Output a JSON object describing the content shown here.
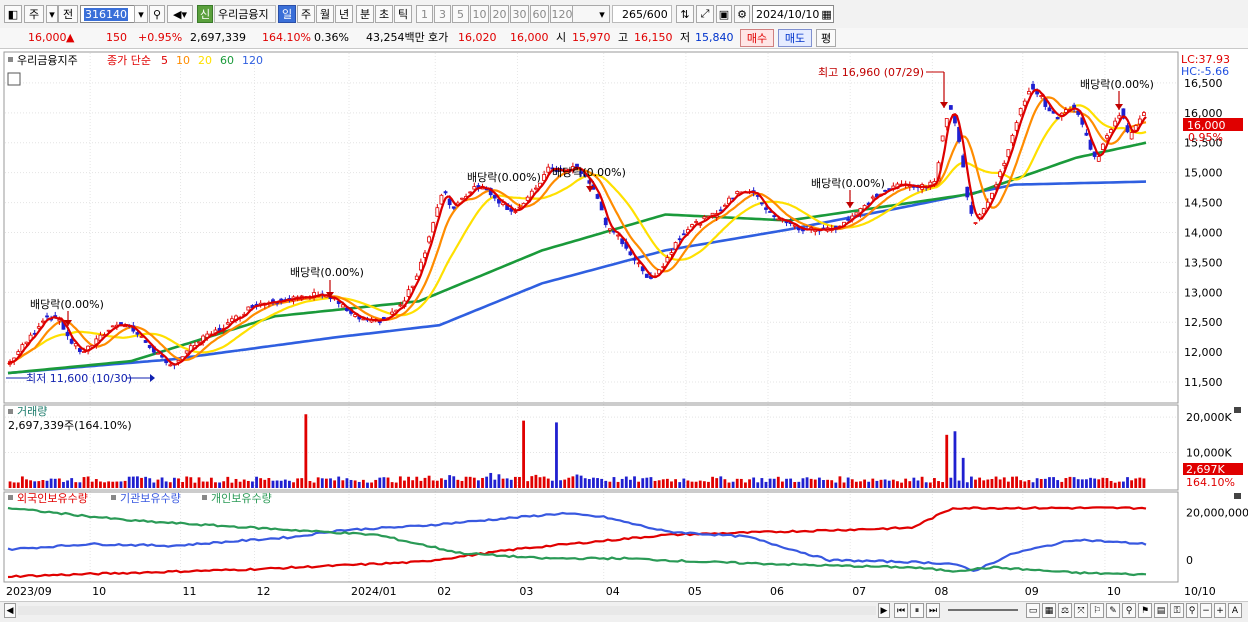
{
  "toolbar": {
    "period_type": "주",
    "prev_label": "전",
    "code": "316140",
    "name": "우리금융지",
    "badge": "신",
    "periods": [
      "일",
      "주",
      "월",
      "년",
      "분",
      "초",
      "틱"
    ],
    "active_period": "일",
    "nums": [
      "1",
      "3",
      "5",
      "10",
      "20",
      "30",
      "60",
      "120"
    ],
    "count": "265",
    "count_total": "/600",
    "date": "2024/10/10"
  },
  "quote": {
    "price": "16,000",
    "arrow": "▲",
    "change": "150",
    "change_pct": "+0.95%",
    "volume": "2,697,339",
    "vol_ratio": "164.10%",
    "turnover": "0.36%",
    "amount": "43,254백만",
    "hoga_label": "호가",
    "hoga1": "16,020",
    "hoga2": "16,000",
    "open_label": "시",
    "open": "15,970",
    "high_label": "고",
    "high": "16,150",
    "low_label": "저",
    "low": "15,840",
    "buy_btn": "매수",
    "sell_btn": "매도",
    "eval_btn": "평"
  },
  "price_panel": {
    "name": "우리금융지주",
    "ma_label": "종가 단순",
    "ma_periods": [
      "5",
      "10",
      "20",
      "60",
      "120"
    ],
    "lc": "LC:37.93",
    "hc": "HC:-5.66",
    "annotations": {
      "high": "최고 16,960 (07/29)",
      "low": "최저 11,600 (10/30)",
      "div1": "배당락(0.00%)",
      "div2": "배당락(0.00%)",
      "div3": "배당락(0.00%)",
      "div4": "배당락(0.00%)",
      "div5": "배당락(0.00%)",
      "div6": "배당락(0.00%)"
    },
    "last_price_tag": "16,000",
    "last_pct_tag": "0.95%"
  },
  "volume_panel": {
    "title": "거래량",
    "value_label": "2,697,339주(164.10%)",
    "tag": "2,697K",
    "tag_pct": "164.10%"
  },
  "holding_panel": {
    "legend": [
      "외국인보유수량",
      "기관보유수량",
      "개인보유수량"
    ]
  },
  "chart_data": [
    {
      "type": "candlestick",
      "ylim": [
        11200,
        16950
      ],
      "yticks": [
        11500,
        12000,
        12500,
        13000,
        13500,
        14000,
        14500,
        15000,
        15500,
        16000,
        16500
      ],
      "ytick_labels": [
        "11,500",
        "12,000",
        "12,500",
        "13,000",
        "13,500",
        "14,000",
        "14,500",
        "15,000",
        "15,500",
        "16,000",
        "16,500"
      ],
      "xlabels": [
        "2023/09",
        "10",
        "11",
        "12",
        "2024/01",
        "02",
        "03",
        "04",
        "05",
        "06",
        "07",
        "08",
        "09",
        "10",
        "10/10"
      ],
      "close_path": [
        [
          0,
          11800
        ],
        [
          6,
          12050
        ],
        [
          12,
          12300
        ],
        [
          18,
          12600
        ],
        [
          25,
          12550
        ],
        [
          30,
          12200
        ],
        [
          36,
          12000
        ],
        [
          42,
          12150
        ],
        [
          48,
          12350
        ],
        [
          54,
          12500
        ],
        [
          60,
          12400
        ],
        [
          66,
          12200
        ],
        [
          72,
          12000
        ],
        [
          78,
          11750
        ],
        [
          84,
          11900
        ],
        [
          90,
          12100
        ],
        [
          96,
          12250
        ],
        [
          104,
          12400
        ],
        [
          112,
          12600
        ],
        [
          120,
          12800
        ],
        [
          128,
          12850
        ],
        [
          136,
          12900
        ],
        [
          144,
          12900
        ],
        [
          152,
          13000
        ],
        [
          160,
          12850
        ],
        [
          168,
          12600
        ],
        [
          176,
          12500
        ],
        [
          184,
          12550
        ],
        [
          192,
          12800
        ],
        [
          198,
          13200
        ],
        [
          204,
          13800
        ],
        [
          208,
          14300
        ],
        [
          212,
          14700
        ],
        [
          216,
          14400
        ],
        [
          222,
          14600
        ],
        [
          228,
          14800
        ],
        [
          234,
          14700
        ],
        [
          240,
          14500
        ],
        [
          246,
          14350
        ],
        [
          252,
          14500
        ],
        [
          258,
          14800
        ],
        [
          264,
          15100
        ],
        [
          270,
          15000
        ],
        [
          276,
          15100
        ],
        [
          282,
          14900
        ],
        [
          288,
          14500
        ],
        [
          292,
          14050
        ],
        [
          298,
          13900
        ],
        [
          304,
          13600
        ],
        [
          310,
          13300
        ],
        [
          314,
          13250
        ],
        [
          320,
          13500
        ],
        [
          326,
          13900
        ],
        [
          332,
          14100
        ],
        [
          338,
          14200
        ],
        [
          344,
          14300
        ],
        [
          350,
          14500
        ],
        [
          356,
          14700
        ],
        [
          362,
          14700
        ],
        [
          368,
          14450
        ],
        [
          374,
          14250
        ],
        [
          380,
          14150
        ],
        [
          386,
          14050
        ],
        [
          392,
          14050
        ],
        [
          398,
          14050
        ],
        [
          404,
          14100
        ],
        [
          410,
          14250
        ],
        [
          416,
          14400
        ],
        [
          422,
          14600
        ],
        [
          428,
          14700
        ],
        [
          434,
          14800
        ],
        [
          440,
          14800
        ],
        [
          446,
          14750
        ],
        [
          452,
          14850
        ],
        [
          454,
          15500
        ],
        [
          458,
          16100
        ],
        [
          462,
          15800
        ],
        [
          466,
          14800
        ],
        [
          470,
          14150
        ],
        [
          474,
          14350
        ],
        [
          478,
          14550
        ],
        [
          482,
          14900
        ],
        [
          486,
          15300
        ],
        [
          490,
          15700
        ],
        [
          494,
          16150
        ],
        [
          498,
          16450
        ],
        [
          502,
          16300
        ],
        [
          506,
          16100
        ],
        [
          510,
          15900
        ],
        [
          514,
          16000
        ],
        [
          518,
          16100
        ],
        [
          522,
          15900
        ],
        [
          526,
          15500
        ],
        [
          530,
          15200
        ],
        [
          534,
          15600
        ],
        [
          538,
          15800
        ],
        [
          542,
          16050
        ],
        [
          546,
          15600
        ],
        [
          550,
          15850
        ],
        [
          554,
          16000
        ]
      ],
      "ma_paths": {
        "ma5": "red",
        "ma10": "orange",
        "ma20": "yellow",
        "ma60": [
          [
            0,
            11650
          ],
          [
            60,
            11850
          ],
          [
            130,
            12600
          ],
          [
            200,
            12850
          ],
          [
            260,
            13700
          ],
          [
            320,
            14300
          ],
          [
            380,
            14200
          ],
          [
            430,
            14450
          ],
          [
            470,
            14650
          ],
          [
            520,
            15250
          ],
          [
            554,
            15500
          ]
        ],
        "ma120": [
          [
            0,
            11650
          ],
          [
            80,
            11880
          ],
          [
            160,
            12250
          ],
          [
            210,
            12450
          ],
          [
            260,
            13150
          ],
          [
            320,
            13700
          ],
          [
            380,
            14050
          ],
          [
            440,
            14450
          ],
          [
            490,
            14800
          ],
          [
            554,
            14850
          ]
        ]
      }
    },
    {
      "type": "bar",
      "name": "거래량",
      "ylim": [
        0,
        22000
      ],
      "ytick_labels": [
        "20,000K",
        "10,000K"
      ],
      "yticks": [
        20000,
        10000
      ],
      "spikes": [
        [
          145,
          20800
        ],
        [
          251,
          19000
        ],
        [
          267,
          18500
        ],
        [
          457,
          15000
        ],
        [
          461,
          16000
        ],
        [
          465,
          8500
        ],
        [
          554,
          2697
        ]
      ]
    },
    {
      "type": "line",
      "ytick_labels": [
        "20,000,000",
        "0"
      ],
      "series": [
        {
          "name": "외국인보유수량",
          "color": "#e00000"
        },
        {
          "name": "기관보유수량",
          "color": "#3858e0"
        },
        {
          "name": "개인보유수량",
          "color": "#2a9a56"
        }
      ]
    }
  ],
  "colors": {
    "up": "#e00000",
    "down": "#2020d0",
    "ma5": "#dd0000",
    "ma10": "#ff8c00",
    "ma20": "#ffe000",
    "ma60": "#1a9a3a",
    "ma120": "#2f5fe0"
  }
}
